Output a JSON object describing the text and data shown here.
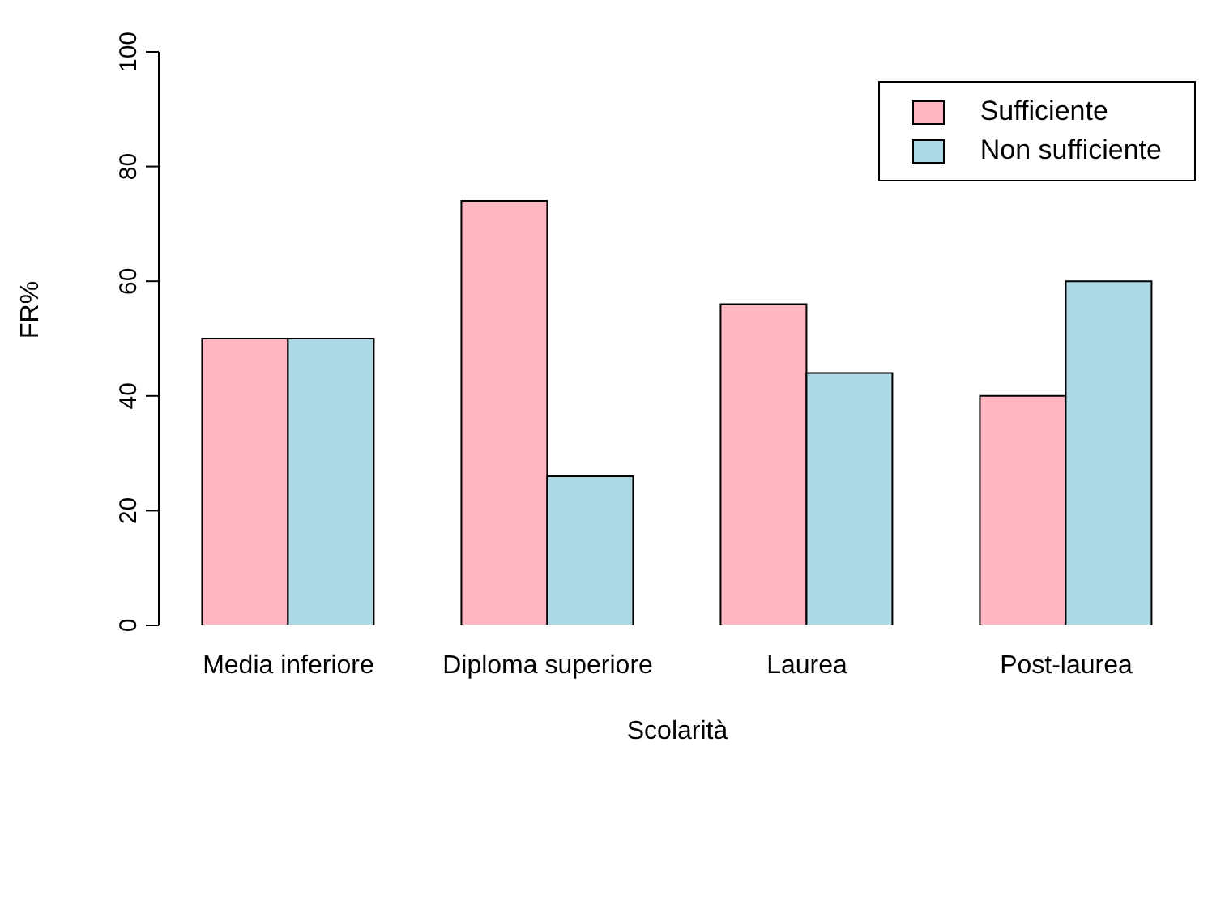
{
  "chart_data": {
    "type": "bar",
    "xlabel": "Scolarità",
    "ylabel": "FR%",
    "categories": [
      "Media inferiore",
      "Diploma superiore",
      "Laurea",
      "Post-laurea"
    ],
    "series": [
      {
        "name": "Sufficiente",
        "color": "#ffb6c1",
        "values": [
          50,
          74,
          56,
          40
        ]
      },
      {
        "name": "Non sufficiente",
        "color": "#add8e6",
        "values": [
          50,
          26,
          44,
          60
        ]
      }
    ],
    "ylim": [
      0,
      100
    ],
    "yticks": [
      0,
      20,
      40,
      60,
      80,
      100
    ],
    "grid": false,
    "legend": "top right"
  }
}
